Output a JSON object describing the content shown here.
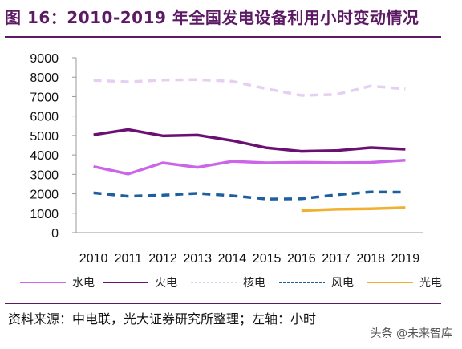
{
  "title": "图 16：2010-2019 年全国发电设备利用小时变动情况",
  "source": "资料来源：中电联，光大证券研究所整理；左轴：小时",
  "watermark": "头条 @未来智库",
  "chart_data": {
    "type": "line",
    "x": [
      "2010",
      "2011",
      "2012",
      "2013",
      "2014",
      "2015",
      "2016",
      "2017",
      "2018",
      "2019"
    ],
    "ylim": [
      0,
      9000
    ],
    "yticks": [
      0,
      1000,
      2000,
      3000,
      4000,
      5000,
      6000,
      7000,
      8000,
      9000
    ],
    "grid": false,
    "legend_position": "bottom",
    "series": [
      {
        "name": "水电",
        "color": "#cc66e8",
        "style": "solid",
        "values": [
          3404,
          3019,
          3591,
          3359,
          3669,
          3590,
          3619,
          3597,
          3613,
          3726
        ]
      },
      {
        "name": "火电",
        "color": "#6b1073",
        "style": "solid",
        "values": [
          5031,
          5305,
          4982,
          5021,
          4739,
          4364,
          4186,
          4219,
          4378,
          4293
        ]
      },
      {
        "name": "核电",
        "color": "#e6cff0",
        "style": "dashed",
        "values": [
          7840,
          7759,
          7855,
          7874,
          7787,
          7403,
          7060,
          7108,
          7543,
          7394
        ]
      },
      {
        "name": "风电",
        "color": "#1f5fa0",
        "style": "dashed",
        "values": [
          2047,
          1875,
          1929,
          2025,
          1900,
          1728,
          1742,
          1948,
          2095,
          2082
        ]
      },
      {
        "name": "光电",
        "color": "#f0b030",
        "style": "solid",
        "values": [
          null,
          null,
          null,
          null,
          null,
          null,
          1133,
          1204,
          1230,
          1285
        ]
      }
    ]
  }
}
